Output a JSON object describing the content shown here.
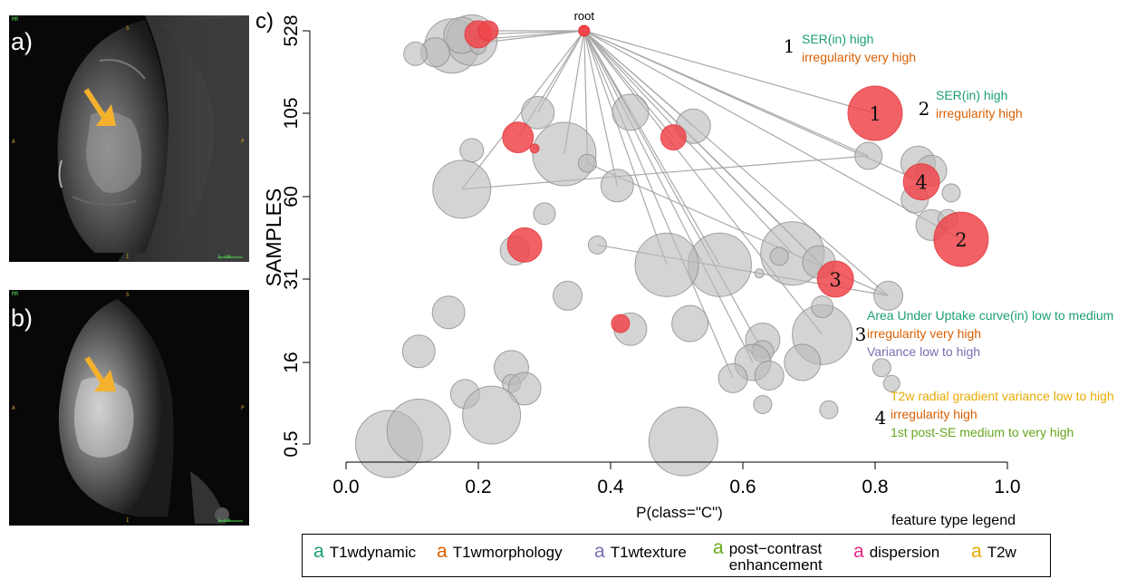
{
  "panels": {
    "a": {
      "label": "a)",
      "corner_tl": "MR",
      "top": "S",
      "left": "A",
      "right": "P",
      "bottom": "I",
      "scale": "1 cm"
    },
    "b": {
      "label": "b)",
      "corner_tl": "MR",
      "top": "S",
      "left": "A",
      "right": "P",
      "bottom": "I",
      "scale": "1 cm"
    },
    "c": {
      "label": "c)"
    }
  },
  "colors": {
    "leaf_grey": "#b9b9b9",
    "leaf_red": "#f0454a",
    "edge": "#a9a9a9",
    "T1wdynamic": "#1b9e77",
    "T1wmorphology": "#d95f02",
    "T1wtexture": "#7570b3",
    "post_contrast": "#66a61e",
    "dispersion": "#e7298a",
    "T2w": "#e6ab02",
    "arrow": "#f3b12d"
  },
  "legend": {
    "title": "feature type legend",
    "items": [
      {
        "swatch": "a",
        "label": "T1wdynamic",
        "color_key": "T1wdynamic"
      },
      {
        "swatch": "a",
        "label": "T1wmorphology",
        "color_key": "T1wmorphology"
      },
      {
        "swatch": "a",
        "label": "T1wtexture",
        "color_key": "T1wtexture"
      },
      {
        "swatch": "a",
        "label": "post−contrast\nenhancement",
        "color_key": "post_contrast"
      },
      {
        "swatch": "a",
        "label": "dispersion",
        "color_key": "dispersion"
      },
      {
        "swatch": "a",
        "label": "T2w",
        "color_key": "T2w"
      }
    ]
  },
  "chart_data": {
    "type": "scatter",
    "xlabel": "P(class=\"C\")",
    "ylabel": "SAMPLES",
    "xlim": [
      0.0,
      1.0
    ],
    "x_ticks": [
      "0.0",
      "0.2",
      "0.4",
      "0.6",
      "0.8",
      "1.0"
    ],
    "y_ticks": [
      "0.5",
      "16",
      "31",
      "60",
      "105",
      "528"
    ],
    "y_scale": "categorical-log",
    "root": {
      "label": "root",
      "x": 0.36,
      "y": 528
    },
    "nodes": [
      {
        "x": 0.8,
        "y": 105,
        "r": 30,
        "red": true,
        "label": "1",
        "edge": true
      },
      {
        "x": 0.93,
        "y": 45,
        "r": 30,
        "red": true,
        "label": "2",
        "edge": true
      },
      {
        "x": 0.74,
        "y": 31,
        "r": 20,
        "red": true,
        "label": "3",
        "edge": true
      },
      {
        "x": 0.87,
        "y": 68,
        "r": 20,
        "red": true,
        "label": "4",
        "edge": true
      },
      {
        "x": 0.2,
        "y": 510,
        "r": 15,
        "red": true,
        "edge": true
      },
      {
        "x": 0.215,
        "y": 530,
        "r": 11,
        "red": true,
        "edge": true
      },
      {
        "x": 0.26,
        "y": 92,
        "r": 17,
        "red": true,
        "edge": true
      },
      {
        "x": 0.495,
        "y": 92,
        "r": 14,
        "red": true,
        "edge": true
      },
      {
        "x": 0.285,
        "y": 86,
        "r": 5,
        "red": true
      },
      {
        "x": 0.27,
        "y": 43,
        "r": 19,
        "red": true
      },
      {
        "x": 0.415,
        "y": 23,
        "r": 10,
        "red": true
      },
      {
        "x": 0.16,
        "y": 450,
        "r": 30,
        "edge": true
      },
      {
        "x": 0.19,
        "y": 480,
        "r": 28,
        "edge": true
      },
      {
        "x": 0.175,
        "y": 505,
        "r": 20
      },
      {
        "x": 0.135,
        "y": 418,
        "r": 16
      },
      {
        "x": 0.105,
        "y": 410,
        "r": 13
      },
      {
        "x": 0.2,
        "y": 450,
        "r": 9
      },
      {
        "x": 0.29,
        "y": 108,
        "r": 18,
        "edge": true
      },
      {
        "x": 0.33,
        "y": 83,
        "r": 35,
        "edge": true
      },
      {
        "x": 0.43,
        "y": 110,
        "r": 20,
        "edge": true
      },
      {
        "x": 0.525,
        "y": 98,
        "r": 19,
        "edge": true
      },
      {
        "x": 0.19,
        "y": 85,
        "r": 13
      },
      {
        "x": 0.175,
        "y": 64,
        "r": 32,
        "edge": true
      },
      {
        "x": 0.41,
        "y": 66,
        "r": 18,
        "edge": true
      },
      {
        "x": 0.365,
        "y": 78,
        "r": 10,
        "edge": true
      },
      {
        "x": 0.79,
        "y": 82,
        "r": 15,
        "edge": true
      },
      {
        "x": 0.865,
        "y": 78,
        "r": 19
      },
      {
        "x": 0.885,
        "y": 74,
        "r": 17
      },
      {
        "x": 0.86,
        "y": 59,
        "r": 15
      },
      {
        "x": 0.885,
        "y": 50,
        "r": 17
      },
      {
        "x": 0.91,
        "y": 52,
        "r": 11
      },
      {
        "x": 0.915,
        "y": 62,
        "r": 10
      },
      {
        "x": 0.3,
        "y": 54,
        "r": 12
      },
      {
        "x": 0.255,
        "y": 41,
        "r": 16
      },
      {
        "x": 0.38,
        "y": 43,
        "r": 10
      },
      {
        "x": 0.675,
        "y": 40,
        "r": 35,
        "edge": true
      },
      {
        "x": 0.715,
        "y": 37,
        "r": 18,
        "edge": true
      },
      {
        "x": 0.565,
        "y": 36,
        "r": 35,
        "edge": true
      },
      {
        "x": 0.485,
        "y": 36,
        "r": 35,
        "edge": true
      },
      {
        "x": 0.655,
        "y": 39,
        "r": 10
      },
      {
        "x": 0.625,
        "y": 33,
        "r": 5
      },
      {
        "x": 0.82,
        "y": 28,
        "r": 16,
        "edge": true
      },
      {
        "x": 0.155,
        "y": 25,
        "r": 18
      },
      {
        "x": 0.335,
        "y": 28,
        "r": 16
      },
      {
        "x": 0.43,
        "y": 22,
        "r": 18
      },
      {
        "x": 0.52,
        "y": 23,
        "r": 20
      },
      {
        "x": 0.72,
        "y": 21,
        "r": 33,
        "edge": true
      },
      {
        "x": 0.72,
        "y": 26,
        "r": 12
      },
      {
        "x": 0.63,
        "y": 20,
        "r": 19
      },
      {
        "x": 0.63,
        "y": 18,
        "r": 12,
        "edge": true
      },
      {
        "x": 0.615,
        "y": 16,
        "r": 20,
        "edge": true
      },
      {
        "x": 0.69,
        "y": 16,
        "r": 20
      },
      {
        "x": 0.585,
        "y": 13,
        "r": 16,
        "edge": true
      },
      {
        "x": 0.64,
        "y": 13.5,
        "r": 16
      },
      {
        "x": 0.11,
        "y": 18,
        "r": 18
      },
      {
        "x": 0.25,
        "y": 15,
        "r": 19
      },
      {
        "x": 0.25,
        "y": 12,
        "r": 10
      },
      {
        "x": 0.27,
        "y": 11,
        "r": 18
      },
      {
        "x": 0.18,
        "y": 10,
        "r": 16
      },
      {
        "x": 0.065,
        "y": 0.5,
        "r": 37
      },
      {
        "x": 0.11,
        "y": 3,
        "r": 35
      },
      {
        "x": 0.22,
        "y": 6,
        "r": 32
      },
      {
        "x": 0.51,
        "y": 1,
        "r": 38
      },
      {
        "x": 0.63,
        "y": 8,
        "r": 10
      },
      {
        "x": 0.73,
        "y": 7,
        "r": 10
      },
      {
        "x": 0.81,
        "y": 15,
        "r": 10
      },
      {
        "x": 0.825,
        "y": 12,
        "r": 9
      }
    ],
    "annotations": [
      {
        "number": "1",
        "lines": [
          {
            "text": "SER(in) high",
            "color_key": "T1wdynamic"
          },
          {
            "text": "irregularity very high",
            "color_key": "T1wmorphology"
          }
        ]
      },
      {
        "number": "2",
        "lines": [
          {
            "text": "SER(in) high",
            "color_key": "T1wdynamic"
          },
          {
            "text": "irregularity high",
            "color_key": "T1wmorphology"
          }
        ]
      },
      {
        "number": "3",
        "lines": [
          {
            "text": "Area Under Uptake curve(in) low to medium",
            "color_key": "T1wdynamic"
          },
          {
            "text": "irregularity very high",
            "color_key": "T1wmorphology"
          },
          {
            "text": "Variance low to high",
            "color_key": "T1wtexture"
          }
        ]
      },
      {
        "number": "4",
        "lines": [
          {
            "text": "T2w radial gradient variance low to high",
            "color_key": "T2w"
          },
          {
            "text": "irregularity high",
            "color_key": "T1wmorphology"
          },
          {
            "text": "1st post-SE medium to very high",
            "color_key": "post_contrast"
          }
        ]
      }
    ]
  }
}
